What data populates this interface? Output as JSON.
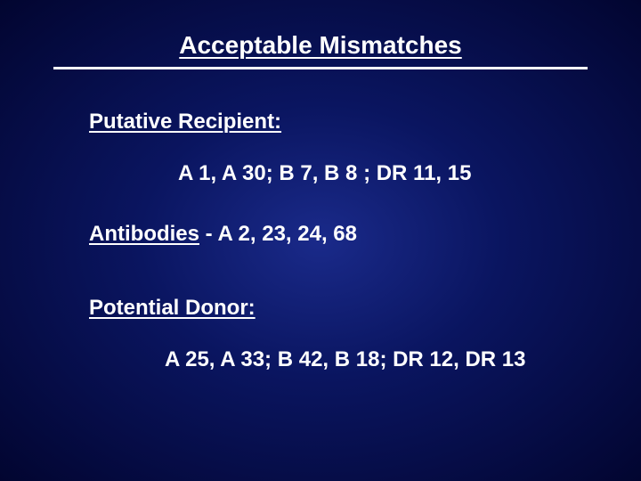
{
  "slide": {
    "title": "Acceptable Mismatches",
    "recipient_label": "Putative Recipient:",
    "recipient_data": "A 1, A 30;  B 7, B 8 ;   DR 11,  15",
    "antibodies_label": "Antibodies",
    "antibodies_sep": " -  ",
    "antibodies_data": "A 2, 23, 24, 68",
    "donor_label": "Potential Donor:",
    "donor_data": "A 25, A 33;  B 42, B 18;   DR 12,  DR 13"
  },
  "style": {
    "background_center": "#1a2a8a",
    "background_mid": "#0a1560",
    "background_edge": "#020530",
    "text_color": "#ffffff",
    "rule_color": "#ffffff",
    "title_fontsize": 28,
    "body_fontsize": 24,
    "font_weight": "bold",
    "font_family": "Arial"
  }
}
